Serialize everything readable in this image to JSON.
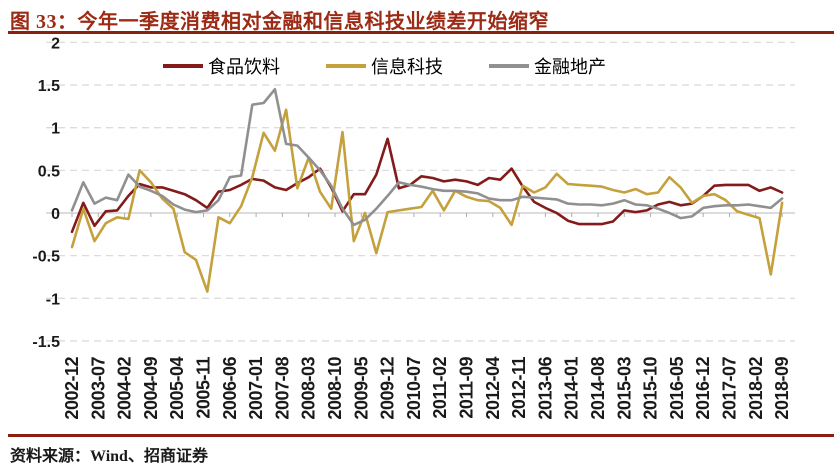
{
  "figure": {
    "title": "图 33：今年一季度消费相对金融和信息科技业绩差开始缩窄",
    "source": "资料来源：Wind、招商证券"
  },
  "colors": {
    "title_red": "#9C2A15",
    "rule_red": "#8D1F10",
    "series_food": "#841B1B",
    "series_tech": "#C5A13D",
    "series_fin": "#909090",
    "grid": "#DCDCDC",
    "zero_line": "#C8C8C8",
    "tick": "#ADADAD",
    "axis_text": "#1A1A1A"
  },
  "chart_data": {
    "type": "line",
    "title": "图 33：今年一季度消费相对金融和信息科技业绩差开始缩窄",
    "xlabel": "",
    "ylabel": "",
    "ylim": [
      -1.5,
      2
    ],
    "y_ticks": [
      "2",
      "1.5",
      "1",
      "0.5",
      "0",
      "-0.5",
      "-1",
      "-1.5"
    ],
    "y_tick_values": [
      2,
      1.5,
      1,
      0.5,
      0,
      -0.5,
      -1,
      -1.5
    ],
    "grid": "dashed-horizontal",
    "legend_position": "top-center",
    "x_tick_labels": [
      "2002-12",
      "2003-07",
      "2004-02",
      "2004-09",
      "2005-04",
      "2005-11",
      "2006-06",
      "2007-01",
      "2007-08",
      "2008-03",
      "2008-10",
      "2009-05",
      "2009-12",
      "2010-07",
      "2011-02",
      "2011-09",
      "2012-04",
      "2012-11",
      "2013-06",
      "2014-01",
      "2014-08",
      "2015-03",
      "2015-10",
      "2016-05",
      "2016-12",
      "2017-07",
      "2018-02",
      "2018-09"
    ],
    "categories": [
      "2002-12",
      "2003-03",
      "2003-06",
      "2003-09",
      "2003-12",
      "2004-03",
      "2004-06",
      "2004-09",
      "2004-12",
      "2005-03",
      "2005-06",
      "2005-09",
      "2005-12",
      "2006-03",
      "2006-06",
      "2006-09",
      "2006-12",
      "2007-03",
      "2007-06",
      "2007-09",
      "2007-12",
      "2008-03",
      "2008-06",
      "2008-09",
      "2008-12",
      "2009-03",
      "2009-06",
      "2009-09",
      "2009-12",
      "2010-03",
      "2010-06",
      "2010-09",
      "2010-12",
      "2011-03",
      "2011-06",
      "2011-09",
      "2011-12",
      "2012-03",
      "2012-06",
      "2012-09",
      "2012-12",
      "2013-03",
      "2013-06",
      "2013-09",
      "2013-12",
      "2014-03",
      "2014-06",
      "2014-09",
      "2014-12",
      "2015-03",
      "2015-06",
      "2015-09",
      "2015-12",
      "2016-03",
      "2016-06",
      "2016-09",
      "2016-12",
      "2017-03",
      "2017-06",
      "2017-09",
      "2017-12",
      "2018-03",
      "2018-06",
      "2018-09"
    ],
    "series": [
      {
        "name": "食品饮料",
        "color": "#841B1B",
        "values": [
          -0.22,
          0.12,
          -0.15,
          0.02,
          0.03,
          0.2,
          0.34,
          0.3,
          0.3,
          0.26,
          0.22,
          0.15,
          0.06,
          0.25,
          0.27,
          0.33,
          0.4,
          0.38,
          0.3,
          0.27,
          0.35,
          0.42,
          0.52,
          0.3,
          0.02,
          0.22,
          0.22,
          0.45,
          0.87,
          0.29,
          0.33,
          0.43,
          0.41,
          0.37,
          0.39,
          0.37,
          0.33,
          0.41,
          0.39,
          0.52,
          0.31,
          0.13,
          0.06,
          0.0,
          -0.09,
          -0.13,
          -0.13,
          -0.13,
          -0.1,
          0.03,
          0.01,
          0.03,
          0.1,
          0.13,
          0.09,
          0.11,
          0.2,
          0.32,
          0.33,
          0.33,
          0.33,
          0.26,
          0.3,
          0.24
        ]
      },
      {
        "name": "信息科技",
        "color": "#C5A13D",
        "values": [
          -0.4,
          0.05,
          -0.33,
          -0.12,
          -0.05,
          -0.07,
          0.5,
          0.36,
          0.17,
          0.05,
          -0.46,
          -0.55,
          -0.92,
          -0.05,
          -0.12,
          0.08,
          0.42,
          0.94,
          0.73,
          1.21,
          0.29,
          0.65,
          0.25,
          0.05,
          0.95,
          -0.33,
          0.0,
          -0.47,
          0.01,
          0.03,
          0.05,
          0.07,
          0.26,
          0.03,
          0.26,
          0.19,
          0.15,
          0.14,
          0.06,
          -0.14,
          0.32,
          0.24,
          0.3,
          0.46,
          0.34,
          0.33,
          0.32,
          0.31,
          0.27,
          0.24,
          0.28,
          0.22,
          0.24,
          0.42,
          0.3,
          0.12,
          0.2,
          0.22,
          0.15,
          0.02,
          -0.02,
          -0.06,
          -0.72,
          0.12
        ]
      },
      {
        "name": "金融地产",
        "color": "#909090",
        "values": [
          0.03,
          0.36,
          0.11,
          0.18,
          0.15,
          0.45,
          0.31,
          0.26,
          0.2,
          0.1,
          0.04,
          0.01,
          0.03,
          0.15,
          0.42,
          0.44,
          1.27,
          1.29,
          1.45,
          0.81,
          0.79,
          0.65,
          0.5,
          0.32,
          0.05,
          -0.14,
          -0.08,
          0.05,
          0.2,
          0.36,
          0.33,
          0.31,
          0.28,
          0.26,
          0.26,
          0.25,
          0.23,
          0.17,
          0.15,
          0.15,
          0.19,
          0.18,
          0.17,
          0.16,
          0.11,
          0.1,
          0.1,
          0.09,
          0.11,
          0.15,
          0.1,
          0.09,
          0.05,
          0.0,
          -0.06,
          -0.04,
          0.06,
          0.08,
          0.09,
          0.09,
          0.1,
          0.08,
          0.06,
          0.17
        ]
      }
    ]
  }
}
